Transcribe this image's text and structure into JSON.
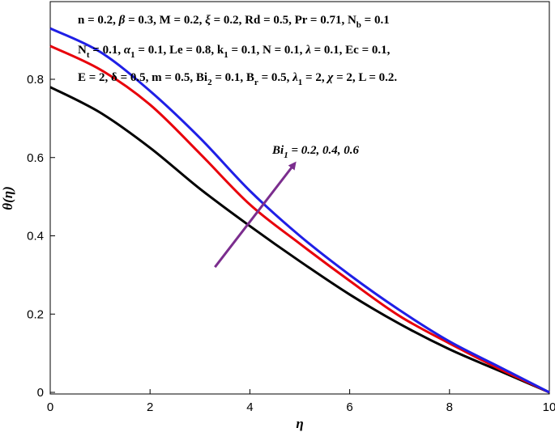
{
  "chart_data": {
    "type": "line",
    "xlabel": "η",
    "ylabel": "θ(η)",
    "xlim": [
      0,
      10
    ],
    "ylim": [
      0,
      0.96
    ],
    "x_ticks": [
      "0",
      "2",
      "4",
      "6",
      "8",
      "10"
    ],
    "y_ticks": [
      "0",
      "0.2",
      "0.4",
      "0.6",
      "0.8"
    ],
    "grid": false,
    "legend": "none",
    "series": [
      {
        "color": "#000000",
        "x": [
          0,
          1,
          2,
          3,
          4,
          5,
          6,
          7,
          8,
          9,
          10
        ],
        "y": [
          0.78,
          0.715,
          0.625,
          0.52,
          0.425,
          0.335,
          0.25,
          0.175,
          0.11,
          0.055,
          0.0
        ]
      },
      {
        "color": "#e8000b",
        "x": [
          0,
          1,
          2,
          3,
          4,
          5,
          6,
          7,
          8,
          9,
          10
        ],
        "y": [
          0.885,
          0.825,
          0.735,
          0.61,
          0.48,
          0.38,
          0.285,
          0.195,
          0.125,
          0.06,
          0.0
        ]
      },
      {
        "color": "#1f1fe6",
        "x": [
          0,
          1,
          2,
          3,
          4,
          5,
          6,
          7,
          8,
          9,
          10
        ],
        "y": [
          0.93,
          0.87,
          0.77,
          0.65,
          0.515,
          0.4,
          0.3,
          0.21,
          0.13,
          0.065,
          0.0
        ]
      }
    ],
    "annotations": {
      "params_line1": "n = 0.2, β = 0.3, M = 0.2, ξ = 0.2, Rd = 0.5, Pr = 0.71, N_b = 0.1",
      "params_line2": "N_t = 0.1, α_1 = 0.1, Le = 0.8, k_1 = 0.1, N = 0.1, λ = 0.1, Ec = 0.1,",
      "params_line3": "E = 2, δ = 0.5, m = 0.5, Bi_2 = 0.1, B_r = 0.5, λ_1 = 2, χ = 2, L = 0.2.",
      "arrow_label": "Bi_1 = 0.2, 0.4, 0.6",
      "arrow_color": "#7b2d8e",
      "arrow_from": [
        3.3,
        0.32
      ],
      "arrow_to": [
        4.9,
        0.585
      ]
    }
  }
}
